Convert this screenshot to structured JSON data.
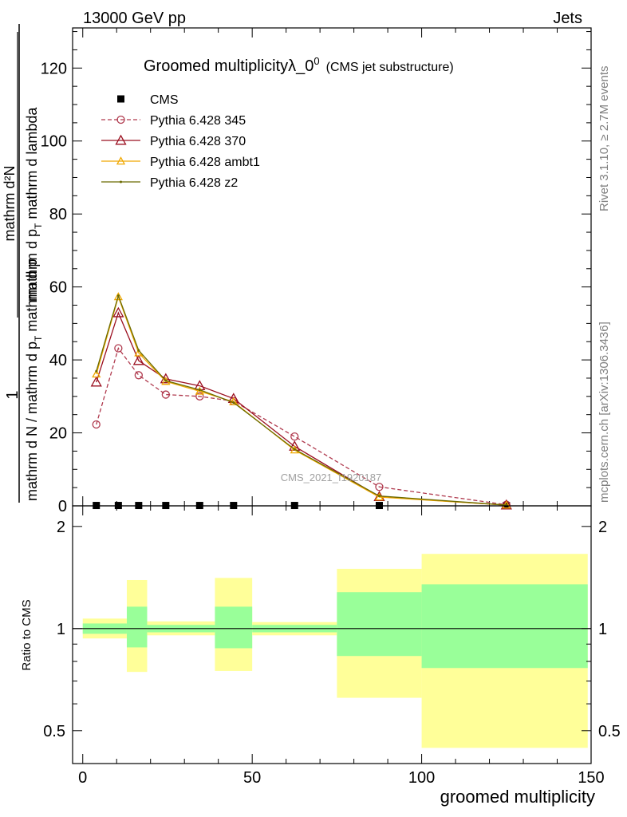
{
  "header": {
    "left": "13000 GeV pp",
    "right": "Jets"
  },
  "side_labels": {
    "rivet": "Rivet 3.1.10, ≥ 2.7M events",
    "mcplots": "mcplots.cern.ch [arXiv:1306.3436]"
  },
  "main": {
    "title_main": "Groomed multiplicityλ_0",
    "title_sup": "0",
    "title_paren": "(CMS jet substructure)",
    "watermark": "CMS_2021_I1920187",
    "ylabel_top_line1": "1",
    "ylabel_numerator": "mathrm d²N",
    "ylabel_denominator_top": "mathrm d p",
    "ylabel_denominator_sub": "T",
    "ylabel_denominator_rest": " mathrm d lambda",
    "ylabel_bottom": "mathrm d N / mathrm d p",
    "ylabel_bottom_sub": "T",
    "ylabel_bottom_rest": " mathrm d p"
  },
  "ratio": {
    "ylabel": "Ratio to CMS"
  },
  "chart_data": [
    {
      "type": "line",
      "panel": "main",
      "x_tick_labels": [],
      "y_tick_labels": [
        "0",
        "20",
        "40",
        "60",
        "80",
        "100",
        "120"
      ],
      "ylim": [
        0,
        131
      ],
      "xlim": [
        -3,
        150
      ],
      "grid": false,
      "legend_placement": "top-left",
      "series": [
        {
          "name": "CMS",
          "style": "marker-square",
          "color": "#000000",
          "x": [
            4,
            10.5,
            16.5,
            24.5,
            34.5,
            44.5,
            62.5,
            87.5,
            125
          ],
          "y": [
            0.1,
            0.1,
            0.1,
            0.1,
            0.1,
            0.1,
            0.1,
            0.1,
            0.1
          ]
        },
        {
          "name": "Pythia 6.428 345",
          "style": "dashed-circle",
          "color": "#b03a4e",
          "x": [
            4,
            10.5,
            16.5,
            24.5,
            34.5,
            44.5,
            62.5,
            87.5,
            125
          ],
          "y": [
            22.3,
            43.2,
            35.8,
            30.5,
            30.0,
            28.7,
            19.0,
            5.2,
            0.3
          ]
        },
        {
          "name": "Pythia 6.428 370",
          "style": "solid-triangle",
          "color": "#9b1020",
          "x": [
            4,
            10.5,
            16.5,
            24.5,
            34.5,
            44.5,
            62.5,
            87.5,
            125
          ],
          "y": [
            33.9,
            52.9,
            39.8,
            34.8,
            32.9,
            29.4,
            16.3,
            2.5,
            0.2
          ]
        },
        {
          "name": "Pythia 6.428 ambt1",
          "style": "solid-triangle",
          "color": "#f0a800",
          "x": [
            4,
            10.5,
            16.5,
            24.5,
            34.5,
            44.5,
            62.5,
            87.5,
            125
          ],
          "y": [
            36.1,
            57.3,
            41.9,
            34.1,
            31.4,
            28.5,
            15.3,
            2.4,
            0.2
          ]
        },
        {
          "name": "Pythia 6.428 z2",
          "style": "solid-dot",
          "color": "#6b6b00",
          "x": [
            4,
            10.5,
            16.5,
            24.5,
            34.5,
            44.5,
            62.5,
            87.5,
            125
          ],
          "y": [
            36.9,
            57.6,
            42.6,
            34.3,
            31.8,
            28.3,
            15.5,
            2.7,
            0.2
          ]
        }
      ]
    },
    {
      "type": "area",
      "panel": "ratio",
      "xlabel": "groomed multiplicity",
      "x_tick_labels": [
        "0",
        "50",
        "100",
        "150"
      ],
      "y_tick_labels": [
        "0.5",
        "1",
        "2"
      ],
      "yscale": "log",
      "ylim": [
        0.4,
        2.3
      ],
      "xlim": [
        -3,
        150
      ],
      "reference_line": 1,
      "bins": [
        {
          "x0": 0,
          "x1": 13,
          "inner": [
            0.965,
            1.035
          ],
          "outer": [
            0.935,
            1.07
          ]
        },
        {
          "x0": 13,
          "x1": 19,
          "inner": [
            0.88,
            1.16
          ],
          "outer": [
            0.745,
            1.39
          ]
        },
        {
          "x0": 19,
          "x1": 39,
          "inner": [
            0.975,
            1.025
          ],
          "outer": [
            0.955,
            1.05
          ]
        },
        {
          "x0": 39,
          "x1": 50,
          "inner": [
            0.875,
            1.16
          ],
          "outer": [
            0.75,
            1.41
          ]
        },
        {
          "x0": 50,
          "x1": 75,
          "inner": [
            0.975,
            1.025
          ],
          "outer": [
            0.955,
            1.045
          ]
        },
        {
          "x0": 75,
          "x1": 100,
          "inner": [
            0.83,
            1.28
          ],
          "outer": [
            0.625,
            1.5
          ]
        },
        {
          "x0": 100,
          "x1": 149,
          "inner": [
            0.765,
            1.35
          ],
          "outer": [
            0.445,
            1.66
          ]
        }
      ]
    }
  ]
}
